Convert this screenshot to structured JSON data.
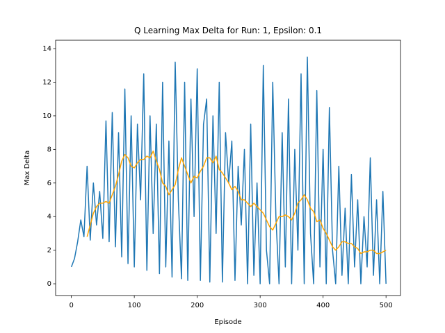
{
  "chart_data": {
    "type": "line",
    "title": "Q Learning Max Delta for Run: 1, Epsilon: 0.1",
    "x_label": "Episode",
    "y_label": "Max Delta",
    "xlim": [
      -25,
      523
    ],
    "ylim": [
      -0.7,
      14.5
    ],
    "xticks": [
      0,
      100,
      200,
      300,
      400,
      500
    ],
    "yticks": [
      0,
      2,
      4,
      6,
      8,
      10,
      12,
      14
    ],
    "grid": false,
    "series": [
      {
        "color": "#1f77b4",
        "x": [
          0,
          5,
          10,
          15,
          20,
          25,
          30,
          35,
          40,
          45,
          50,
          55,
          60,
          65,
          70,
          75,
          80,
          85,
          90,
          95,
          100,
          105,
          110,
          115,
          120,
          125,
          130,
          135,
          140,
          145,
          150,
          155,
          160,
          165,
          170,
          175,
          180,
          185,
          190,
          195,
          200,
          205,
          210,
          215,
          220,
          225,
          230,
          235,
          240,
          245,
          250,
          255,
          260,
          265,
          270,
          275,
          280,
          285,
          290,
          295,
          300,
          305,
          310,
          315,
          320,
          325,
          330,
          335,
          340,
          345,
          350,
          355,
          360,
          365,
          370,
          375,
          380,
          385,
          390,
          395,
          400,
          405,
          410,
          415,
          420,
          425,
          430,
          435,
          440,
          445,
          450,
          455,
          460,
          465,
          470,
          475,
          480,
          485,
          490,
          495,
          500
        ],
        "values": [
          1.0,
          1.5,
          2.5,
          3.8,
          2.8,
          7.0,
          2.6,
          6.0,
          3.5,
          5.5,
          2.7,
          9.7,
          2.5,
          10.2,
          2.2,
          9.0,
          1.6,
          11.6,
          1.2,
          10.0,
          1.0,
          9.5,
          5.0,
          12.5,
          0.8,
          10.0,
          3.0,
          9.5,
          0.6,
          12.0,
          1.0,
          8.5,
          0.4,
          13.2,
          5.0,
          0.3,
          12.0,
          0.2,
          11.0,
          4.0,
          12.8,
          0.2,
          9.5,
          11.0,
          0.1,
          10.0,
          3.0,
          12.0,
          0.1,
          9.0,
          6.0,
          8.5,
          0.2,
          7.0,
          3.5,
          8.0,
          0.0,
          9.5,
          0.5,
          6.0,
          0.0,
          13.0,
          2.0,
          0.0,
          12.0,
          4.0,
          0.0,
          9.0,
          1.0,
          11.0,
          0.0,
          8.0,
          2.0,
          12.5,
          0.0,
          13.5,
          3.0,
          0.0,
          11.5,
          1.0,
          8.0,
          0.0,
          10.5,
          2.0,
          0.0,
          7.0,
          0.5,
          4.5,
          0.0,
          6.5,
          1.0,
          5.0,
          0.0,
          4.0,
          1.0,
          7.5,
          0.5,
          5.0,
          0.0,
          5.5,
          0.0
        ]
      },
      {
        "color": "#ffa500",
        "x": [
          25,
          30,
          35,
          40,
          45,
          50,
          55,
          60,
          65,
          70,
          75,
          80,
          85,
          90,
          95,
          100,
          105,
          110,
          115,
          120,
          125,
          130,
          135,
          140,
          145,
          150,
          155,
          160,
          165,
          170,
          175,
          180,
          185,
          190,
          195,
          200,
          205,
          210,
          215,
          220,
          225,
          230,
          235,
          240,
          245,
          250,
          255,
          260,
          265,
          270,
          275,
          280,
          285,
          290,
          295,
          300,
          305,
          310,
          315,
          320,
          325,
          330,
          335,
          340,
          345,
          350,
          355,
          360,
          365,
          370,
          375,
          380,
          385,
          390,
          395,
          400,
          405,
          410,
          415,
          420,
          425,
          430,
          435,
          440,
          445,
          450,
          455,
          460,
          465,
          470,
          475,
          480,
          485,
          490,
          495,
          500
        ],
        "values": [
          2.8,
          3.5,
          4.2,
          4.6,
          4.8,
          4.8,
          4.9,
          4.8,
          5.3,
          5.8,
          6.5,
          7.3,
          7.7,
          7.5,
          7.0,
          6.9,
          7.2,
          7.4,
          7.4,
          7.6,
          7.5,
          7.9,
          7.3,
          6.8,
          6.0,
          5.8,
          5.3,
          5.6,
          5.9,
          6.8,
          7.5,
          7.0,
          6.5,
          6.0,
          6.4,
          6.3,
          6.7,
          7.0,
          7.5,
          7.5,
          7.2,
          7.6,
          6.8,
          6.6,
          6.3,
          6.0,
          5.6,
          5.8,
          5.5,
          5.0,
          5.0,
          4.8,
          4.6,
          4.8,
          4.6,
          4.4,
          4.2,
          3.8,
          3.4,
          3.2,
          3.6,
          4.0,
          4.0,
          4.1,
          4.0,
          3.8,
          4.2,
          4.8,
          5.0,
          5.3,
          5.0,
          4.5,
          4.3,
          3.7,
          3.8,
          3.3,
          3.0,
          2.6,
          2.2,
          2.0,
          2.2,
          2.5,
          2.5,
          2.4,
          2.4,
          2.2,
          2.1,
          1.8,
          1.9,
          1.9,
          2.0,
          2.0,
          1.8,
          1.8,
          1.9,
          2.0
        ]
      }
    ]
  }
}
